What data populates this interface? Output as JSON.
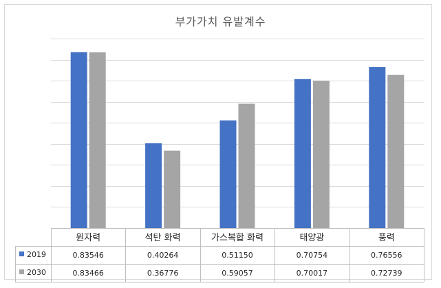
{
  "chart_data": {
    "type": "bar",
    "title": "부가가치 유발계수",
    "categories": [
      "원자력",
      "석탄 화력",
      "가스복합 화력",
      "태양광",
      "풍력"
    ],
    "series": [
      {
        "name": "2019",
        "color": "#4472c4",
        "values": [
          0.83546,
          0.40264,
          0.5115,
          0.70754,
          0.76556
        ],
        "labels": [
          "0.83546",
          "0.40264",
          "0.51150",
          "0.70754",
          "0.76556"
        ]
      },
      {
        "name": "2030",
        "color": "#a5a5a5",
        "values": [
          0.83466,
          0.36776,
          0.59057,
          0.70017,
          0.72739
        ],
        "labels": [
          "0.83466",
          "0.36776",
          "0.59057",
          "0.70017",
          "0.72739"
        ]
      }
    ],
    "ylim": [
      0,
      0.9
    ],
    "grid": true,
    "legend": "data-table"
  }
}
